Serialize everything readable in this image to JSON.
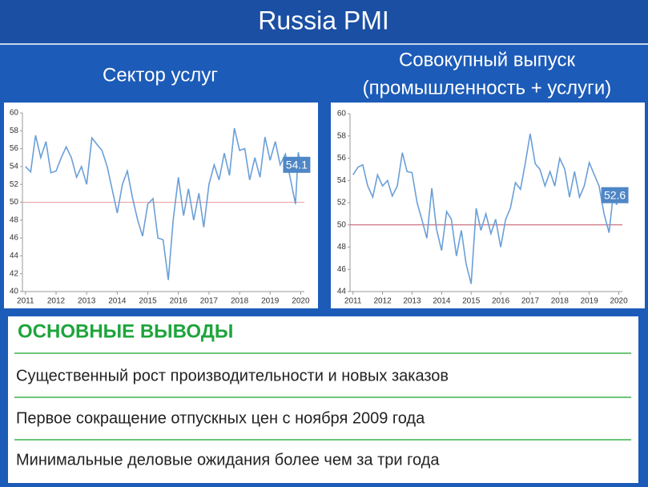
{
  "title": "Russia PMI",
  "subtitles": [
    [
      "Сектор услуг"
    ],
    [
      "Совокупный выпуск",
      "(промышленность + услуги)"
    ]
  ],
  "chart_data": [
    {
      "type": "line",
      "x": [
        2011.0,
        2011.17,
        2011.33,
        2011.5,
        2011.67,
        2011.83,
        2012.0,
        2012.17,
        2012.33,
        2012.5,
        2012.67,
        2012.83,
        2013.0,
        2013.17,
        2013.33,
        2013.5,
        2013.67,
        2013.83,
        2014.0,
        2014.17,
        2014.33,
        2014.5,
        2014.67,
        2014.83,
        2015.0,
        2015.17,
        2015.33,
        2015.5,
        2015.67,
        2015.83,
        2016.0,
        2016.17,
        2016.33,
        2016.5,
        2016.67,
        2016.83,
        2017.0,
        2017.17,
        2017.33,
        2017.5,
        2017.67,
        2017.83,
        2018.0,
        2018.17,
        2018.33,
        2018.5,
        2018.67,
        2018.83,
        2019.0,
        2019.17,
        2019.33,
        2019.5,
        2019.67,
        2019.83,
        2019.92,
        2020.0
      ],
      "series": [
        {
          "color": "#6a9fd8",
          "values": [
            54,
            53.4,
            57.5,
            55,
            56.8,
            53.3,
            53.5,
            55,
            56.2,
            55,
            52.8,
            54,
            52,
            57.2,
            56.5,
            55.8,
            54,
            51.5,
            48.8,
            52,
            53.5,
            50.5,
            48,
            46.2,
            49.8,
            50.4,
            46,
            45.8,
            41.3,
            48,
            52.8,
            48.5,
            51.5,
            48,
            51,
            47.2,
            52,
            54.2,
            52.5,
            55.5,
            53,
            58.3,
            55.8,
            56,
            52.5,
            55,
            52.8,
            57.3,
            54.7,
            56.8,
            54.2,
            55.4,
            52.5,
            49.8,
            55.6,
            54.1
          ]
        }
      ],
      "xlim": [
        2010.9,
        2020.12
      ],
      "xticks": [
        2011,
        2012,
        2013,
        2014,
        2015,
        2016,
        2017,
        2018,
        2019,
        2020
      ],
      "ylim": [
        40,
        60
      ],
      "yticks": [
        40,
        42,
        44,
        46,
        48,
        50,
        52,
        54,
        56,
        58,
        60
      ],
      "reference_line": 50,
      "reference_color": "#e8a0a0",
      "end_value_label": "54.1",
      "label_color": "#4f86c6"
    },
    {
      "type": "line",
      "x": [
        2011.0,
        2011.17,
        2011.33,
        2011.5,
        2011.67,
        2011.83,
        2012.0,
        2012.17,
        2012.33,
        2012.5,
        2012.67,
        2012.83,
        2013.0,
        2013.17,
        2013.33,
        2013.5,
        2013.67,
        2013.83,
        2014.0,
        2014.17,
        2014.33,
        2014.5,
        2014.67,
        2014.83,
        2015.0,
        2015.17,
        2015.33,
        2015.5,
        2015.67,
        2015.83,
        2016.0,
        2016.17,
        2016.33,
        2016.5,
        2016.67,
        2016.83,
        2017.0,
        2017.17,
        2017.33,
        2017.5,
        2017.67,
        2017.83,
        2018.0,
        2018.17,
        2018.33,
        2018.5,
        2018.67,
        2018.83,
        2019.0,
        2019.17,
        2019.33,
        2019.5,
        2019.67,
        2019.83,
        2019.92,
        2020.0
      ],
      "series": [
        {
          "color": "#6a9fd8",
          "values": [
            54.5,
            55.2,
            55.4,
            53.5,
            52.5,
            54.5,
            53.5,
            54,
            52.6,
            53.5,
            56.5,
            54.8,
            54.7,
            52,
            50.5,
            48.8,
            53.3,
            49.6,
            47.7,
            51.2,
            50.5,
            47.2,
            49.5,
            46.5,
            44.7,
            51.5,
            49.5,
            51,
            49.2,
            50.5,
            48,
            50.5,
            51.5,
            53.8,
            53.2,
            55.5,
            58.2,
            55.5,
            55,
            53.5,
            54.8,
            53.5,
            56,
            55,
            52.5,
            54.8,
            52.5,
            53.5,
            55.6,
            54.5,
            53.5,
            51,
            49.3,
            53.2,
            51.8,
            52.6
          ]
        }
      ],
      "xlim": [
        2010.9,
        2020.12
      ],
      "xticks": [
        2011,
        2012,
        2013,
        2014,
        2015,
        2016,
        2017,
        2018,
        2019,
        2020
      ],
      "ylim": [
        44,
        60
      ],
      "yticks": [
        44,
        46,
        48,
        50,
        52,
        54,
        56,
        58,
        60
      ],
      "reference_line": 50,
      "reference_color": "#c05060",
      "end_value_label": "52.6",
      "label_color": "#4f86c6"
    }
  ],
  "conclusions": {
    "heading": "ОСНОВНЫЕ ВЫВОДЫ",
    "items": [
      "Существенный рост производительности и новых заказов",
      "Первое сокращение отпускных цен с ноября 2009 года",
      "Минимальные деловые ожидания более чем за три года"
    ]
  }
}
